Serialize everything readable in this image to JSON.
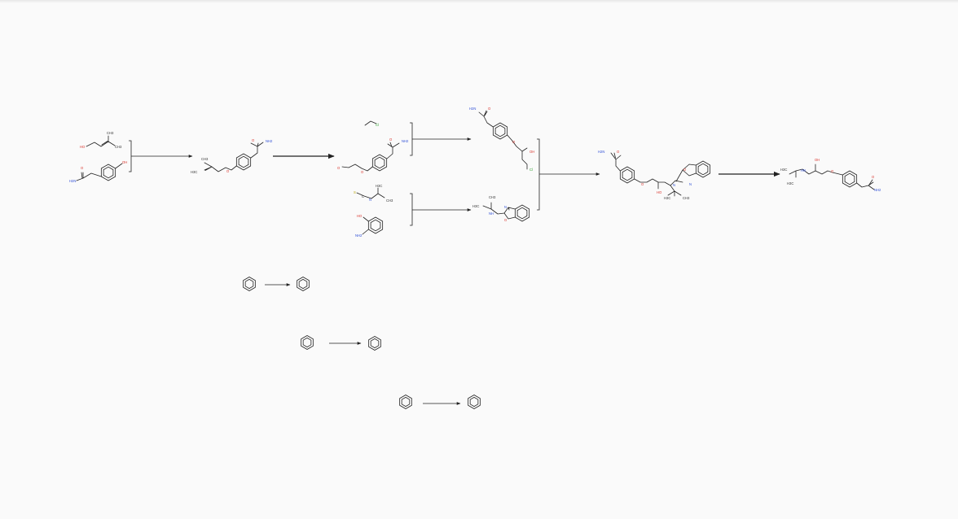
{
  "colors": {
    "oxygen": "#d9332b",
    "nitrogen": "#2f4fd6",
    "chlorine": "#2ca02c",
    "sulfur": "#b8a400",
    "carbon": "#333333",
    "background": "#fafafa"
  },
  "labels": {
    "OH": "OH",
    "HO": "HO",
    "O": "O",
    "NH2": "NH2",
    "H2N": "H2N",
    "CH3": "CH3",
    "H3C": "H3C",
    "Cl": "Cl",
    "S": "S",
    "N": "N",
    "NH": "NH",
    "HN": "HN",
    "C": "C"
  }
}
